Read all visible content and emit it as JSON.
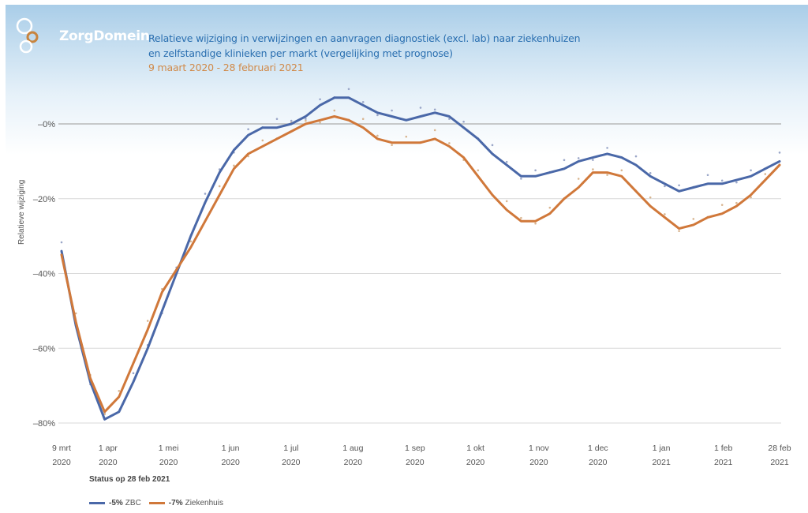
{
  "header": {
    "logo_text": "ZorgDomein",
    "title_line1": "Relatieve wijziging in verwijzingen en aanvragen diagnostiek (excl. lab) naar ziekenhuizen",
    "title_line2": "en zelfstandige klinieken per markt (vergelijking met prognose)",
    "subtitle": "9 maart 2020 - 28 februari 2021"
  },
  "colors": {
    "zbc": "#4a68a8",
    "ziekenhuis": "#d0783a",
    "title": "#2a6fb0",
    "subtitle": "#d08a4a",
    "grid": "#d8d8d8",
    "zero_line": "#b8b8b8"
  },
  "footer": {
    "status_label": "Status op 28 feb 2021",
    "legend": [
      {
        "value": "-5%",
        "name": "ZBC",
        "color": "#4a68a8"
      },
      {
        "value": "-7%",
        "name": "Ziekenhuis",
        "color": "#d0783a"
      }
    ]
  },
  "chart_data": {
    "type": "line",
    "title": "Relatieve wijziging in verwijzingen en aanvragen diagnostiek (excl. lab) naar ziekenhuizen en zelfstandige klinieken per markt (vergelijking met prognose)",
    "subtitle": "9 maart 2020 - 28 februari 2021",
    "xlabel": "",
    "ylabel": "Relatieve wijziging",
    "ylim": [
      -80,
      0
    ],
    "yticks": [
      {
        "value": 0,
        "label": "–0%"
      },
      {
        "value": -20,
        "label": "–20%"
      },
      {
        "value": -40,
        "label": "–40%"
      },
      {
        "value": -60,
        "label": "–60%"
      },
      {
        "value": -80,
        "label": "–80%"
      }
    ],
    "grid": true,
    "x_unit": "weeks since 9 mrt 2020",
    "xlim": [
      0,
      51
    ],
    "xticks": [
      {
        "week": 0,
        "label1": "9 mrt",
        "label2": "2020"
      },
      {
        "week": 3.3,
        "label1": "1 apr",
        "label2": "2020"
      },
      {
        "week": 7.6,
        "label1": "1 mei",
        "label2": "2020"
      },
      {
        "week": 12.0,
        "label1": "1 jun",
        "label2": "2020"
      },
      {
        "week": 16.3,
        "label1": "1 jul",
        "label2": "2020"
      },
      {
        "week": 20.7,
        "label1": "1 aug",
        "label2": "2020"
      },
      {
        "week": 25.1,
        "label1": "1 sep",
        "label2": "2020"
      },
      {
        "week": 29.4,
        "label1": "1 okt",
        "label2": "2020"
      },
      {
        "week": 33.9,
        "label1": "1 nov",
        "label2": "2020"
      },
      {
        "week": 38.1,
        "label1": "1 dec",
        "label2": "2020"
      },
      {
        "week": 42.6,
        "label1": "1 jan",
        "label2": "2021"
      },
      {
        "week": 47.0,
        "label1": "1 feb",
        "label2": "2021"
      },
      {
        "week": 51.0,
        "label1": "28 feb",
        "label2": "2021"
      }
    ],
    "legend_position": "bottom-left",
    "series": [
      {
        "name": "ZBC",
        "status_value": "-5%",
        "color": "#4a68a8",
        "values": [
          -34,
          -54,
          -69,
          -79,
          -77,
          -69,
          -60,
          -50,
          -40,
          -30,
          -21,
          -13,
          -7,
          -3,
          -1,
          -1,
          0,
          2,
          5,
          7,
          7,
          5,
          3,
          2,
          1,
          2,
          3,
          2,
          -1,
          -4,
          -8,
          -11,
          -14,
          -14,
          -13,
          -12,
          -10,
          -9,
          -8,
          -9,
          -11,
          -14,
          -16,
          -18,
          -17,
          -16,
          -16,
          -15,
          -14,
          -12,
          -10
        ]
      },
      {
        "name": "Ziekenhuis",
        "status_value": "-7%",
        "color": "#d0783a",
        "values": [
          -35,
          -53,
          -68,
          -77,
          -73,
          -64,
          -55,
          -45,
          -39,
          -33,
          -26,
          -19,
          -12,
          -8,
          -6,
          -4,
          -2,
          0,
          1,
          2,
          1,
          -1,
          -4,
          -5,
          -5,
          -5,
          -4,
          -6,
          -9,
          -14,
          -19,
          -23,
          -26,
          -26,
          -24,
          -20,
          -17,
          -13,
          -13,
          -14,
          -18,
          -22,
          -25,
          -28,
          -27,
          -25,
          -24,
          -22,
          -19,
          -15,
          -11
        ]
      }
    ]
  }
}
